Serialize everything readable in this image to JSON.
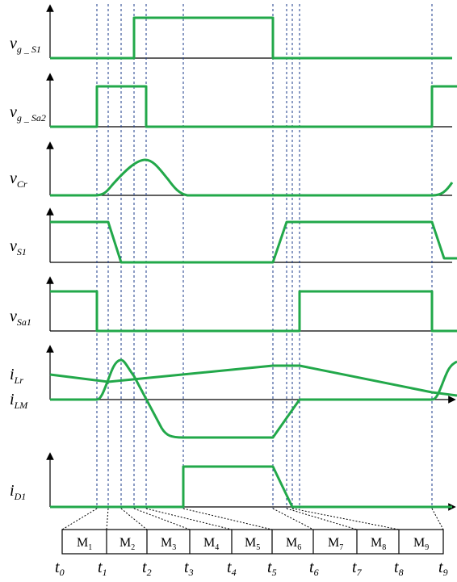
{
  "traces": [
    {
      "id": "vg_s1",
      "label_main": "v",
      "label_sub": "g _ S1"
    },
    {
      "id": "vg_sa2",
      "label_main": "v",
      "label_sub": "g _ Sa2"
    },
    {
      "id": "vcr",
      "label_main": "v",
      "label_sub": "Cr"
    },
    {
      "id": "vs1",
      "label_main": "v",
      "label_sub": "S1"
    },
    {
      "id": "vsa1",
      "label_main": "v",
      "label_sub": "Sa1"
    },
    {
      "id": "ilr",
      "label_main": "i",
      "label_sub": "Lr"
    },
    {
      "id": "ilm",
      "label_main": "i",
      "label_sub": "LM"
    },
    {
      "id": "id1",
      "label_main": "i",
      "label_sub": "D1"
    }
  ],
  "modes": [
    {
      "main": "M",
      "sub": "1"
    },
    {
      "main": "M",
      "sub": "2"
    },
    {
      "main": "M",
      "sub": "3"
    },
    {
      "main": "M",
      "sub": "4"
    },
    {
      "main": "M",
      "sub": "5"
    },
    {
      "main": "M",
      "sub": "6"
    },
    {
      "main": "M",
      "sub": "7"
    },
    {
      "main": "M",
      "sub": "8"
    },
    {
      "main": "M",
      "sub": "9"
    }
  ],
  "times": [
    {
      "main": "t",
      "sub": "0"
    },
    {
      "main": "t",
      "sub": "1"
    },
    {
      "main": "t",
      "sub": "2"
    },
    {
      "main": "t",
      "sub": "3"
    },
    {
      "main": "t",
      "sub": "4"
    },
    {
      "main": "t",
      "sub": "5"
    },
    {
      "main": "t",
      "sub": "6"
    },
    {
      "main": "t",
      "sub": "7"
    },
    {
      "main": "t",
      "sub": "8"
    },
    {
      "main": "t",
      "sub": "9"
    }
  ],
  "colors": {
    "trace": "#22a84a",
    "axis": "#000000",
    "guide": "#1a3a8a"
  }
}
